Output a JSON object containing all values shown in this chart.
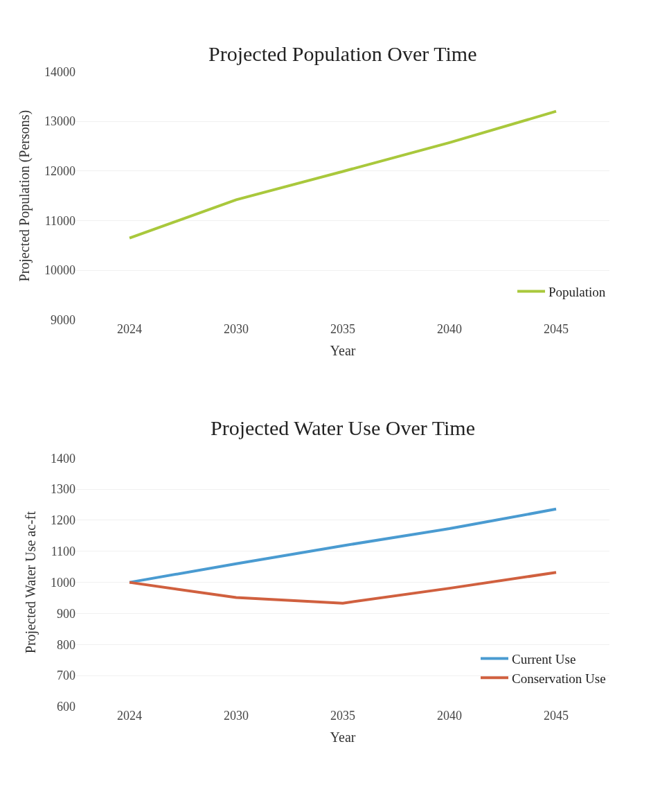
{
  "chart_data": [
    {
      "type": "line",
      "title": "Projected Population Over Time",
      "xlabel": "Year",
      "ylabel": "Projected Population (Persons)",
      "categories": [
        "2024",
        "2030",
        "2035",
        "2040",
        "2045"
      ],
      "series": [
        {
          "name": "Population",
          "color": "#a9c83c",
          "values": [
            10650,
            11420,
            11990,
            12570,
            13200
          ]
        }
      ],
      "ylim": [
        9000,
        14000
      ],
      "yticks": [
        9000,
        10000,
        11000,
        12000,
        13000,
        14000
      ],
      "grid": "y",
      "legend": "bottom right",
      "marker": "none",
      "line_style": "solid"
    },
    {
      "type": "line",
      "title": "Projected Water Use Over Time",
      "xlabel": "Year",
      "ylabel": "Projected Water Use ac-ft",
      "categories": [
        "2024",
        "2030",
        "2035",
        "2040",
        "2045"
      ],
      "series": [
        {
          "name": "Current Use",
          "color": "#4a9bd1",
          "values": [
            1000,
            1060,
            1118,
            1173,
            1236
          ]
        },
        {
          "name": "Conservation Use",
          "color": "#d0603f",
          "values": [
            1000,
            951,
            933,
            981,
            1032
          ]
        }
      ],
      "ylim": [
        600,
        1400
      ],
      "yticks": [
        600,
        700,
        800,
        900,
        1000,
        1100,
        1200,
        1300,
        1400
      ],
      "grid": "y",
      "legend": "bottom right",
      "marker": "none",
      "line_style": "solid"
    }
  ]
}
